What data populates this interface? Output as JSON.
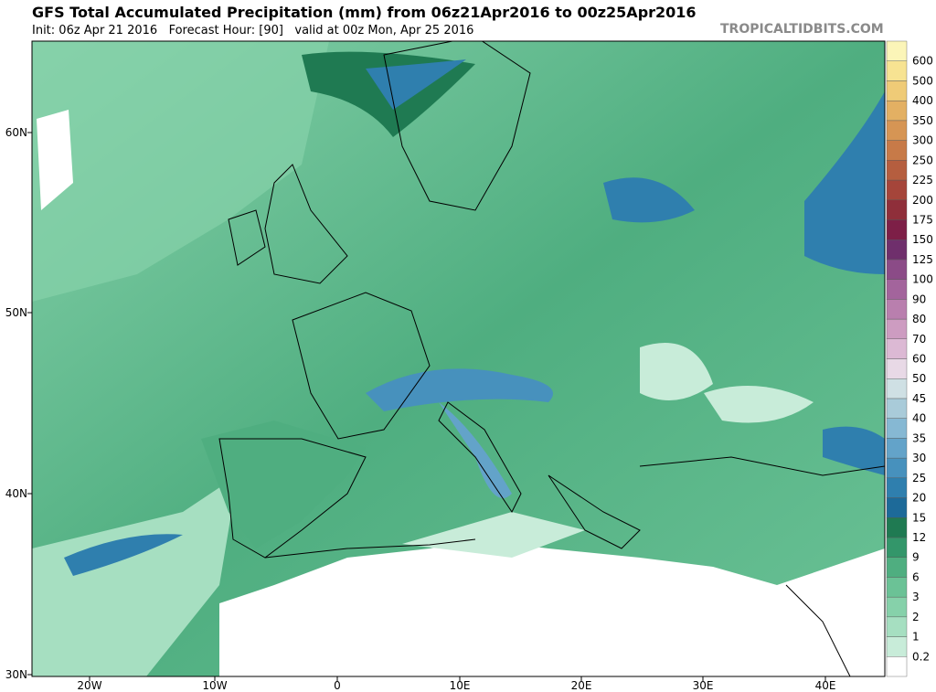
{
  "header": {
    "title": "GFS Total Accumulated Precipitation (mm) from 06z21Apr2016 to 00z25Apr2016",
    "subtitle": "Init: 06z Apr 21 2016   Forecast Hour: [90]   valid at 00z Mon, Apr 25 2016",
    "site": "TROPICALTIDBITS.COM"
  },
  "map": {
    "lat_labels": [
      "60N",
      "50N",
      "40N",
      "30N"
    ],
    "lon_labels": [
      "20W",
      "10W",
      "0",
      "10E",
      "20E",
      "30E",
      "40E"
    ]
  },
  "colorbar": {
    "levels": [
      0.2,
      1,
      2,
      3,
      6,
      9,
      12,
      15,
      20,
      25,
      30,
      35,
      40,
      45,
      50,
      60,
      70,
      80,
      90,
      100,
      125,
      150,
      175,
      200,
      225,
      250,
      300,
      350,
      400,
      500,
      600
    ],
    "colors": [
      "#ffffff",
      "#c8ecd9",
      "#a6dfc1",
      "#86d1aa",
      "#6bc296",
      "#4fae80",
      "#33966a",
      "#1f7a52",
      "#1d6a99",
      "#2f7fae",
      "#4791bd",
      "#63a3c9",
      "#86b8d3",
      "#a9cbd9",
      "#cfe0e4",
      "#e8d9e6",
      "#dcb9d4",
      "#cd9cc1",
      "#b97fae",
      "#a3649c",
      "#8b4b87",
      "#6f2f6c",
      "#7d1f47",
      "#8f2f3a",
      "#a5453a",
      "#b55e3f",
      "#c77a48",
      "#d69554",
      "#e3b063",
      "#efcb77",
      "#f7e392",
      "#fbf5b8"
    ]
  }
}
